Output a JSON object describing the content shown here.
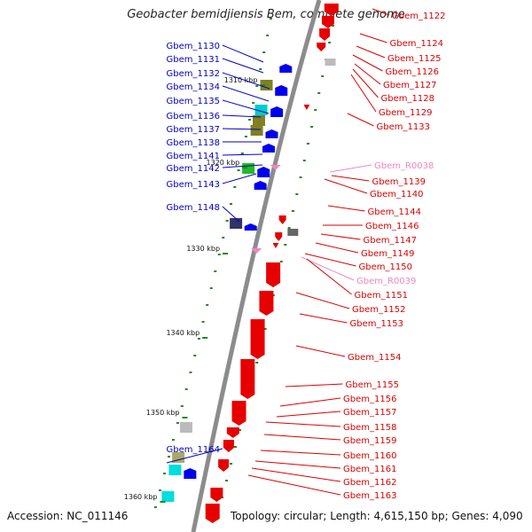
{
  "title": "Geobacter bemidjiensis Bem, complete genome",
  "accession": "Accession: NC_011146",
  "topology": "Topology: circular; Length: 4,615,150 bp; Genes: 4,090",
  "colors": {
    "backbone": "#8c8c8c",
    "forward_label": "#0000cc",
    "reverse_label": "#dd0000",
    "rna_label": "#ee88bb",
    "tick_dash": "#228822"
  },
  "ticks": [
    {
      "label": "1310 kbp"
    },
    {
      "label": "1320 kbp"
    },
    {
      "label": "1330 kbp"
    },
    {
      "label": "1340 kbp"
    },
    {
      "label": "1350 kbp"
    },
    {
      "label": "1360 kbp"
    }
  ],
  "left_labels": [
    {
      "text": "Gbem_1130"
    },
    {
      "text": "Gbem_1131"
    },
    {
      "text": "Gbem_1132"
    },
    {
      "text": "Gbem_1134"
    },
    {
      "text": "Gbem_1135"
    },
    {
      "text": "Gbem_1136"
    },
    {
      "text": "Gbem_1137"
    },
    {
      "text": "Gbem_1138"
    },
    {
      "text": "Gbem_1141"
    },
    {
      "text": "Gbem_1142"
    },
    {
      "text": "Gbem_1143"
    },
    {
      "text": "Gbem_1148"
    },
    {
      "text": "Gbem_1164"
    }
  ],
  "right_labels": [
    {
      "text": "Gbem_1122",
      "kind": "cds"
    },
    {
      "text": "Gbem_1124",
      "kind": "cds"
    },
    {
      "text": "Gbem_1125",
      "kind": "cds"
    },
    {
      "text": "Gbem_1126",
      "kind": "cds"
    },
    {
      "text": "Gbem_1127",
      "kind": "cds"
    },
    {
      "text": "Gbem_1128",
      "kind": "cds"
    },
    {
      "text": "Gbem_1129",
      "kind": "cds"
    },
    {
      "text": "Gbem_1133",
      "kind": "cds"
    },
    {
      "text": "Gbem_R0038",
      "kind": "rna"
    },
    {
      "text": "Gbem_1139",
      "kind": "cds"
    },
    {
      "text": "Gbem_1140",
      "kind": "cds"
    },
    {
      "text": "Gbem_1144",
      "kind": "cds"
    },
    {
      "text": "Gbem_1146",
      "kind": "cds"
    },
    {
      "text": "Gbem_1147",
      "kind": "cds"
    },
    {
      "text": "Gbem_1149",
      "kind": "cds"
    },
    {
      "text": "Gbem_1150",
      "kind": "cds"
    },
    {
      "text": "Gbem_R0039",
      "kind": "rna"
    },
    {
      "text": "Gbem_1151",
      "kind": "cds"
    },
    {
      "text": "Gbem_1152",
      "kind": "cds"
    },
    {
      "text": "Gbem_1153",
      "kind": "cds"
    },
    {
      "text": "Gbem_1154",
      "kind": "cds"
    },
    {
      "text": "Gbem_1155",
      "kind": "cds"
    },
    {
      "text": "Gbem_1156",
      "kind": "cds"
    },
    {
      "text": "Gbem_1157",
      "kind": "cds"
    },
    {
      "text": "Gbem_1158",
      "kind": "cds"
    },
    {
      "text": "Gbem_1159",
      "kind": "cds"
    },
    {
      "text": "Gbem_1160",
      "kind": "cds"
    },
    {
      "text": "Gbem_1161",
      "kind": "cds"
    },
    {
      "text": "Gbem_1162",
      "kind": "cds"
    },
    {
      "text": "Gbem_1163",
      "kind": "cds"
    }
  ]
}
